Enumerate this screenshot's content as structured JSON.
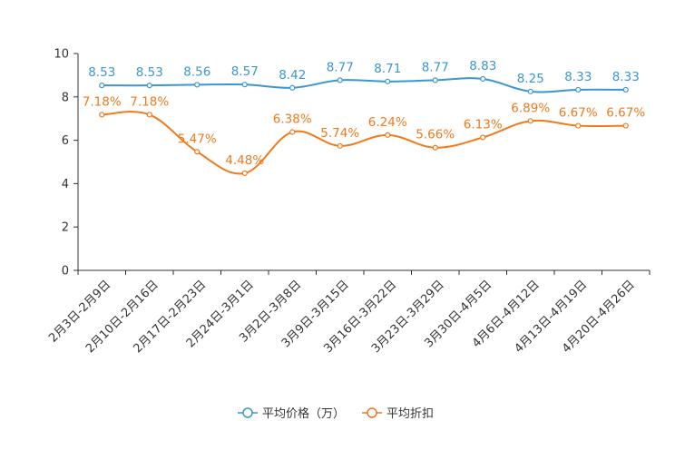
{
  "chart_data": {
    "type": "line",
    "title": "",
    "xlabel": "",
    "ylabel": "",
    "ylim": [
      0,
      10
    ],
    "yticks": [
      0,
      2,
      4,
      6,
      8,
      10
    ],
    "grid": false,
    "legend_position": "bottom",
    "categories": [
      "2月3日-2月9日",
      "2月10日-2月16日",
      "2月17日-2月23日",
      "2月24日-3月1日",
      "3月2日-3月8日",
      "3月9日-3月15日",
      "3月16日-3月22日",
      "3月23日-3月29日",
      "3月30日-4月5日",
      "4月6日-4月12日",
      "4月13日-4月19日",
      "4月20日-4月26日"
    ],
    "series": [
      {
        "name": "平均价格（万）",
        "color": "#3a97cf",
        "values": [
          8.53,
          8.53,
          8.56,
          8.57,
          8.42,
          8.77,
          8.71,
          8.77,
          8.83,
          8.25,
          8.33,
          8.33
        ],
        "labels": [
          "8.53",
          "8.53",
          "8.56",
          "8.57",
          "8.42",
          "8.77",
          "8.71",
          "8.77",
          "8.83",
          "8.25",
          "8.33",
          "8.33"
        ]
      },
      {
        "name": "平均折扣",
        "color": "#f07a1c",
        "values": [
          7.18,
          7.18,
          5.47,
          4.48,
          6.38,
          5.74,
          6.24,
          5.66,
          6.13,
          6.89,
          6.67,
          6.67
        ],
        "labels": [
          "7.18%",
          "7.18%",
          "5.47%",
          "4.48%",
          "6.38%",
          "5.74%",
          "6.24%",
          "5.66%",
          "6.13%",
          "6.89%",
          "6.67%",
          "6.67%"
        ]
      }
    ]
  }
}
